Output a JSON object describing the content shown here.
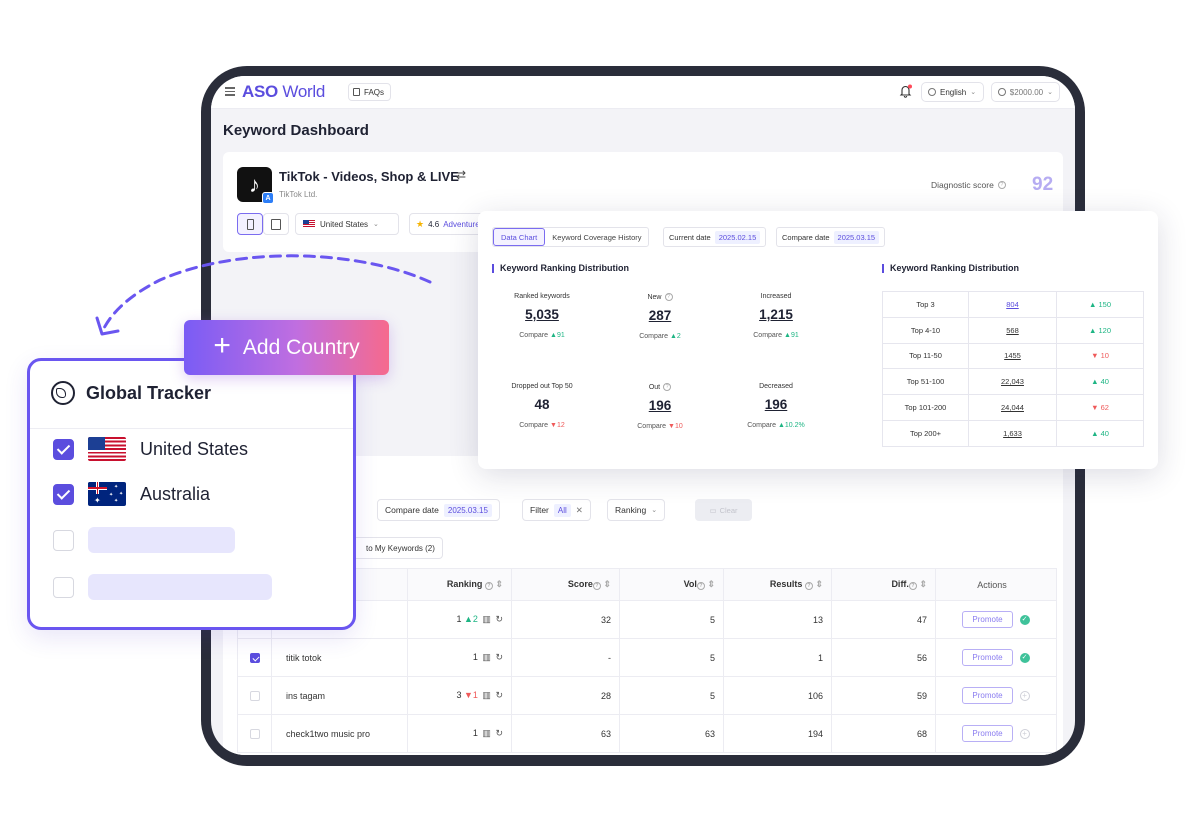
{
  "header": {
    "logo_aso": "ASO",
    "logo_world": "World",
    "faq_label": "FAQs",
    "language": "English",
    "balance": "$2000.00"
  },
  "page": {
    "title": "Keyword Dashboard"
  },
  "app": {
    "name": "TikTok - Videos, Shop & LIVE",
    "developer": "TikTok Ltd.",
    "country": "United States",
    "rating": "4.6",
    "category": "Adventure",
    "diagnostic_label": "Diagnostic score",
    "diagnostic_score": "92"
  },
  "distribution": {
    "tabs": [
      "Data Chart",
      "Keyword Coverage History"
    ],
    "current_date_label": "Current date",
    "current_date": "2025.02.15",
    "compare_date_label": "Compare date",
    "compare_date": "2025.03.15",
    "section_left": "Keyword Ranking Distribution",
    "section_right": "Keyword Ranking Distribution",
    "compare_word": "Compare",
    "metrics": [
      {
        "label": "Ranked keywords",
        "value": "5,035",
        "delta": "91",
        "dir": "up"
      },
      {
        "label": "New",
        "value": "287",
        "delta": "2",
        "dir": "up"
      },
      {
        "label": "Increased",
        "value": "1,215",
        "delta": "91",
        "dir": "up"
      },
      {
        "label": "Dropped out Top 50",
        "value": "48",
        "delta": "12",
        "dir": "down"
      },
      {
        "label": "Out",
        "value": "196",
        "delta": "10",
        "dir": "down"
      },
      {
        "label": "Decreased",
        "value": "196",
        "delta": "10.2%",
        "dir": "up"
      }
    ],
    "ranking_rows": [
      {
        "range": "Top 3",
        "value": "804",
        "delta": "150",
        "dir": "up"
      },
      {
        "range": "Top 4-10",
        "value": "568",
        "delta": "120",
        "dir": "up"
      },
      {
        "range": "Top 11-50",
        "value": "1455",
        "delta": "10",
        "dir": "down"
      },
      {
        "range": "Top 51-100",
        "value": "22,043",
        "delta": "40",
        "dir": "up"
      },
      {
        "range": "Top 101-200",
        "value": "24,044",
        "delta": "62",
        "dir": "down"
      },
      {
        "range": "Top 200+",
        "value": "1,633",
        "delta": "40",
        "dir": "up"
      }
    ]
  },
  "filters": {
    "compare_label": "Compare date",
    "compare_value": "2025.03.15",
    "filter_label": "Filter",
    "filter_value": "All",
    "ranking_label": "Ranking",
    "clear_label": "Clear",
    "add_to_my_keywords": "to My Keywords (2)"
  },
  "table": {
    "headers": [
      "Ranking",
      "Score",
      "Vol",
      "Results",
      "Diff.",
      "Actions"
    ],
    "promote_label": "Promote",
    "rows": [
      {
        "keyword": "",
        "checked": false,
        "rank": "1",
        "rank_delta": "2",
        "rank_dir": "up",
        "score": "32",
        "vol": "5",
        "results": "13",
        "diff": "47",
        "status": "ok"
      },
      {
        "keyword": "titik totok",
        "checked": true,
        "rank": "1",
        "rank_delta": "",
        "rank_dir": "",
        "score": "-",
        "vol": "5",
        "results": "1",
        "diff": "56",
        "status": "ok"
      },
      {
        "keyword": "ins tagam",
        "checked": false,
        "rank": "3",
        "rank_delta": "1",
        "rank_dir": "down",
        "score": "28",
        "vol": "5",
        "results": "106",
        "diff": "59",
        "status": "add"
      },
      {
        "keyword": "check1two music pro",
        "checked": false,
        "rank": "1",
        "rank_delta": "",
        "rank_dir": "",
        "score": "63",
        "vol": "63",
        "results": "194",
        "diff": "68",
        "status": "add"
      }
    ]
  },
  "add_country": {
    "label": "Add Country"
  },
  "tracker": {
    "title": "Global Tracker",
    "countries": [
      {
        "name": "United States",
        "checked": true
      },
      {
        "name": "Australia",
        "checked": true
      }
    ]
  },
  "colors": {
    "accent": "#5b4dde",
    "up": "#1eb584",
    "down": "#ef5a5a",
    "tracker_border": "#6a56f0"
  }
}
